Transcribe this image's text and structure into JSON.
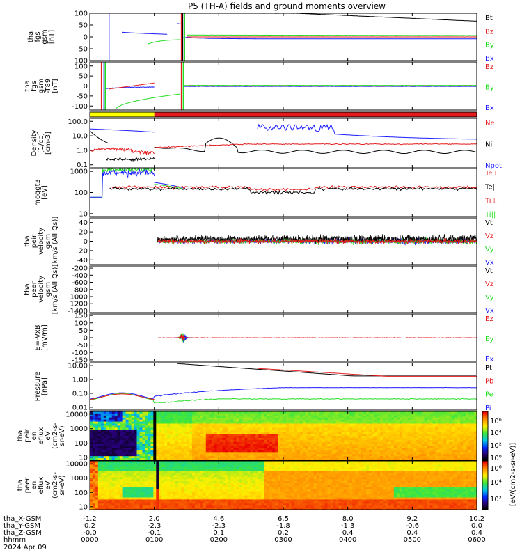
{
  "title": "P5 (TH-A) fields and ground moments overview",
  "colors": {
    "black": "#000000",
    "red": "#e41a1c",
    "green": "#22dd22",
    "blue": "#1a1aff",
    "yellow": "#ffff00"
  },
  "chart_data": {
    "type": "line",
    "panels": [
      {
        "id": "fgs",
        "ylabel": [
          "tha",
          "fgs",
          "gsm",
          "[nT]"
        ],
        "ticks": [
          "100",
          "50",
          "0",
          "-50",
          "-100"
        ],
        "ylim": [
          -100,
          100
        ],
        "legend": [
          {
            "label": "Bt",
            "color": "#000000"
          },
          {
            "label": "Bz",
            "color": "#e41a1c"
          },
          {
            "label": "By",
            "color": "#22dd22"
          },
          {
            "label": "Bx",
            "color": "#1a1aff"
          }
        ]
      },
      {
        "id": "fgs_dp",
        "ylabel": [
          "tha",
          "fgs",
          "gsm",
          "-T89",
          "[nT]"
        ],
        "ticks": [
          "100",
          "50",
          "0",
          "-50",
          "-100"
        ],
        "ylim": [
          -120,
          120
        ],
        "legend": [
          {
            "label": "Bz",
            "color": "#e41a1c"
          },
          {
            "label": "By",
            "color": "#22dd22"
          },
          {
            "label": "Bx",
            "color": "#1a1aff"
          }
        ]
      },
      {
        "id": "density",
        "ylabel": [
          "Density",
          "[1/cc]",
          "[cm-3]"
        ],
        "ticks": [
          "100.0",
          "10.0",
          "1.0",
          "0.1"
        ],
        "scale": "log",
        "legend": [
          {
            "label": "Ne",
            "color": "#e41a1c"
          },
          {
            "label": "Ni",
            "color": "#000000"
          },
          {
            "label": "Npot",
            "color": "#1a1aff"
          }
        ]
      },
      {
        "id": "temp",
        "ylabel": [
          "moqgt3",
          "[eV]"
        ],
        "ticks": [
          "1000",
          "100",
          "10"
        ],
        "scale": "log",
        "legend": [
          {
            "label": "Te⊥",
            "color": "#e41a1c"
          },
          {
            "label": "Te||",
            "color": "#000000"
          },
          {
            "label": "Ti⊥",
            "color": "#e41a1c"
          },
          {
            "label": "Ti||",
            "color": "#22dd22"
          }
        ]
      },
      {
        "id": "peir_velocity",
        "ylabel": [
          "tha",
          "peir",
          "velocity",
          "gsm",
          "[km/s (All Qs)]"
        ],
        "ticks": [
          "40",
          "20",
          "0",
          "-20",
          "-40"
        ],
        "ylim": [
          -50,
          50
        ],
        "legend": [
          {
            "label": "Vt",
            "color": "#000000"
          },
          {
            "label": "Vz",
            "color": "#e41a1c"
          },
          {
            "label": "Vy",
            "color": "#22dd22"
          },
          {
            "label": "Vx",
            "color": "#1a1aff"
          }
        ]
      },
      {
        "id": "peer_velocity",
        "ylabel": [
          "tha",
          "peer",
          "velocity",
          "gsm",
          "[km/s (All Qs)]"
        ],
        "ticks": [
          "-200",
          "-400",
          "-600",
          "-800",
          "-1000",
          "-1200",
          "-1400"
        ],
        "ylim": [
          -1450,
          -140
        ],
        "legend": [
          {
            "label": "Vt",
            "color": "#000000"
          },
          {
            "label": "Vz",
            "color": "#e41a1c"
          },
          {
            "label": "Vy",
            "color": "#22dd22"
          },
          {
            "label": "Vx",
            "color": "#1a1aff"
          }
        ]
      },
      {
        "id": "efield",
        "ylabel": [
          "E=-VxB",
          "[mV/m]"
        ],
        "ticks": [
          "150",
          "100",
          "50",
          "0",
          "-50",
          "-100",
          "-150"
        ],
        "ylim": [
          -160,
          160
        ],
        "legend": [
          {
            "label": "Ez",
            "color": "#e41a1c"
          },
          {
            "label": "Ey",
            "color": "#22dd22"
          },
          {
            "label": "Ex",
            "color": "#1a1aff"
          }
        ]
      },
      {
        "id": "pressure",
        "ylabel": [
          "Pressure",
          "[nPa]"
        ],
        "ticks": [
          "10.00",
          "1.00",
          "0.10",
          "0.01"
        ],
        "scale": "log",
        "legend": [
          {
            "label": "Pt",
            "color": "#000000"
          },
          {
            "label": "Pb",
            "color": "#e41a1c"
          },
          {
            "label": "Pe",
            "color": "#22dd22"
          },
          {
            "label": "Pi",
            "color": "#1a1aff"
          }
        ]
      },
      {
        "id": "peir_spec",
        "type": "heatmap",
        "ylabel": [
          "tha",
          "peir",
          "en",
          "eflux",
          "eV",
          "(cm2-s-",
          "sr-eV)"
        ],
        "ticks": [
          "10000",
          "1000",
          "100",
          "10"
        ],
        "scale": "log"
      },
      {
        "id": "peer_spec",
        "type": "heatmap",
        "ylabel": [
          "tha",
          "peer",
          "en",
          "eflux",
          "eV",
          "(cm2-s-",
          "sr-eV)"
        ],
        "ticks": [
          "10000",
          "1000",
          "100",
          "10"
        ],
        "scale": "log"
      }
    ],
    "colorbar": {
      "ticks": [
        "10⁶",
        "10⁴",
        "10²",
        "10⁰",
        "10⁶",
        "10⁴",
        "10²"
      ],
      "label": "[eV/(cm2-s-sr-eV)]"
    },
    "x_rows": [
      {
        "label": "tha_X-GSM",
        "values": [
          "-1.2",
          "2.0",
          "4.6",
          "6.5",
          "8.0",
          "9.2",
          "10.2"
        ]
      },
      {
        "label": "tha_Y-GSM",
        "values": [
          "0.2",
          "-2.3",
          "-2.3",
          "-1.8",
          "-1.3",
          "-0.6",
          "0.0"
        ]
      },
      {
        "label": "tha_Z-GSM",
        "values": [
          "-0.0",
          "-0.1",
          "0.1",
          "0.2",
          "0.4",
          "0.4",
          "0.4"
        ]
      },
      {
        "label": "hhmm",
        "values": [
          "0000",
          "0100",
          "0200",
          "0300",
          "0400",
          "0500",
          "0600"
        ]
      }
    ],
    "date_label": "2024 Apr 09"
  }
}
